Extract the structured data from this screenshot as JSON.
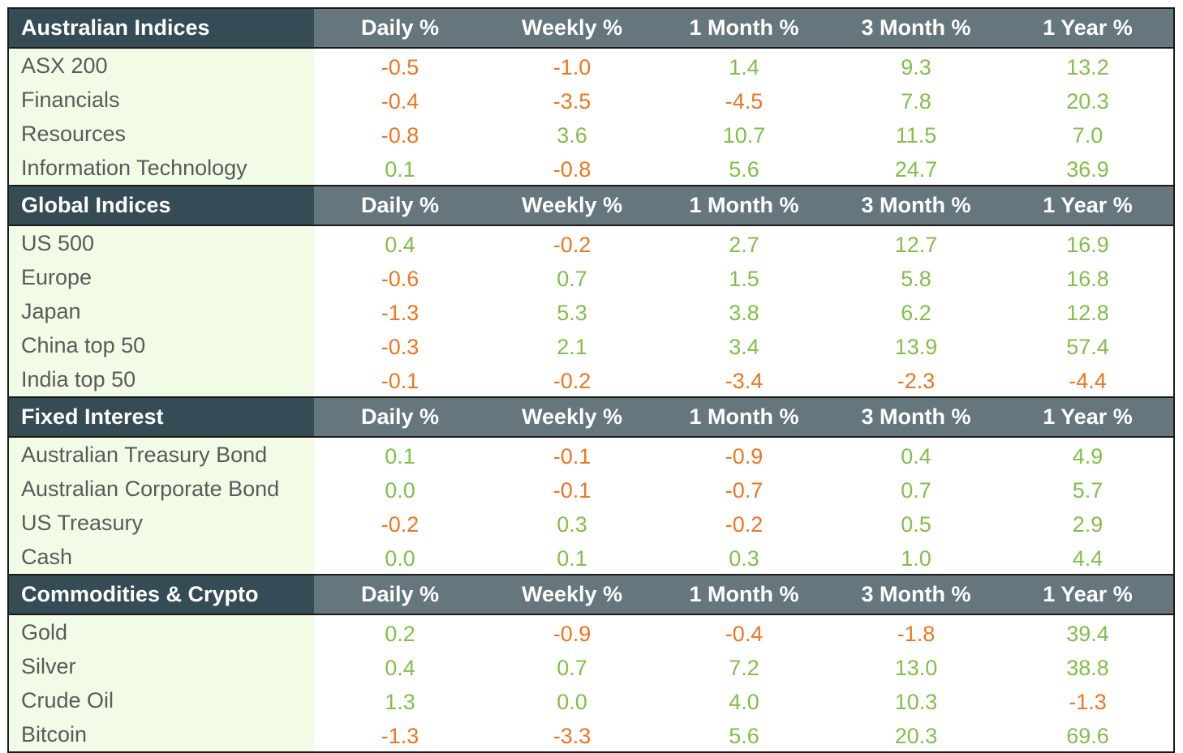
{
  "columns": [
    "Daily %",
    "Weekly %",
    "1 Month %",
    "3 Month %",
    "1 Year %"
  ],
  "colors": {
    "header_title_bg": "#354b55",
    "header_bg": "#65767d",
    "name_bg": "#f2fbe6",
    "positive": "#82bf4a",
    "negative": "#ef7520"
  },
  "sections": [
    {
      "title": "Australian Indices",
      "rows": [
        {
          "name": "ASX 200",
          "values": [
            "-0.5",
            "-1.0",
            "1.4",
            "9.3",
            "13.2"
          ]
        },
        {
          "name": "Financials",
          "values": [
            "-0.4",
            "-3.5",
            "-4.5",
            "7.8",
            "20.3"
          ]
        },
        {
          "name": "Resources",
          "values": [
            "-0.8",
            "3.6",
            "10.7",
            "11.5",
            "7.0"
          ]
        },
        {
          "name": "Information Technology",
          "values": [
            "0.1",
            "-0.8",
            "5.6",
            "24.7",
            "36.9"
          ]
        }
      ]
    },
    {
      "title": "Global Indices",
      "rows": [
        {
          "name": "US 500",
          "values": [
            "0.4",
            "-0.2",
            "2.7",
            "12.7",
            "16.9"
          ]
        },
        {
          "name": "Europe",
          "values": [
            "-0.6",
            "0.7",
            "1.5",
            "5.8",
            "16.8"
          ]
        },
        {
          "name": "Japan",
          "values": [
            "-1.3",
            "5.3",
            "3.8",
            "6.2",
            "12.8"
          ]
        },
        {
          "name": "China top 50",
          "values": [
            "-0.3",
            "2.1",
            "3.4",
            "13.9",
            "57.4"
          ]
        },
        {
          "name": "India top 50",
          "values": [
            "-0.1",
            "-0.2",
            "-3.4",
            "-2.3",
            "-4.4"
          ]
        }
      ]
    },
    {
      "title": "Fixed Interest",
      "rows": [
        {
          "name": "Australian Treasury Bond",
          "values": [
            "0.1",
            "-0.1",
            "-0.9",
            "0.4",
            "4.9"
          ]
        },
        {
          "name": "Australian Corporate Bond",
          "values": [
            "0.0",
            "-0.1",
            "-0.7",
            "0.7",
            "5.7"
          ]
        },
        {
          "name": "US Treasury",
          "values": [
            "-0.2",
            "0.3",
            "-0.2",
            "0.5",
            "2.9"
          ]
        },
        {
          "name": "Cash",
          "values": [
            "0.0",
            "0.1",
            "0.3",
            "1.0",
            "4.4"
          ]
        }
      ]
    },
    {
      "title": "Commodities & Crypto",
      "rows": [
        {
          "name": "Gold",
          "values": [
            "0.2",
            "-0.9",
            "-0.4",
            "-1.8",
            "39.4"
          ]
        },
        {
          "name": "Silver",
          "values": [
            "0.4",
            "0.7",
            "7.2",
            "13.0",
            "38.8"
          ]
        },
        {
          "name": "Crude Oil",
          "values": [
            "1.3",
            "0.0",
            "4.0",
            "10.3",
            "-1.3"
          ]
        },
        {
          "name": "Bitcoin",
          "values": [
            "-1.3",
            "-3.3",
            "5.6",
            "20.3",
            "69.6"
          ]
        }
      ]
    }
  ]
}
